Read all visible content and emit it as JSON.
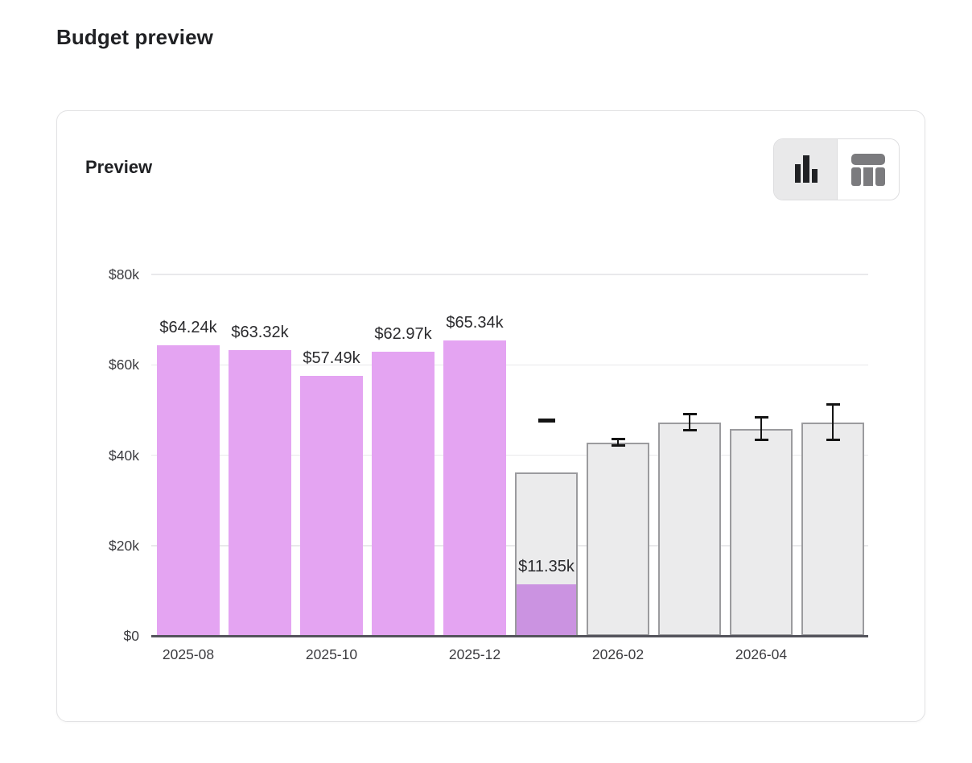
{
  "page": {
    "title": "Budget preview"
  },
  "card": {
    "heading": "Preview",
    "view_toggle": {
      "options": [
        {
          "name": "chart-view",
          "icon": "bar-chart-icon",
          "selected": true
        },
        {
          "name": "table-view",
          "icon": "table-icon",
          "selected": false
        }
      ]
    }
  },
  "chart_data": {
    "type": "bar",
    "title": "Budget preview",
    "xlabel": "",
    "ylabel": "",
    "ylim": [
      0,
      80000
    ],
    "grid": "horizontal",
    "legend": "none",
    "y_ticks": [
      {
        "value": 0,
        "label": "$0"
      },
      {
        "value": 20000,
        "label": "$20k"
      },
      {
        "value": 40000,
        "label": "$40k"
      },
      {
        "value": 60000,
        "label": "$60k"
      },
      {
        "value": 80000,
        "label": "$80k"
      }
    ],
    "x_tick_labels": [
      "2025-08",
      "2025-10",
      "2025-12",
      "2026-02",
      "2026-04"
    ],
    "bars": [
      {
        "month": "2025-08",
        "type": "actual",
        "value": 64240,
        "label": "$64.24k"
      },
      {
        "month": "2025-09",
        "type": "actual",
        "value": 63320,
        "label": "$63.32k"
      },
      {
        "month": "2025-10",
        "type": "actual",
        "value": 57490,
        "label": "$57.49k"
      },
      {
        "month": "2025-11",
        "type": "actual",
        "value": 62970,
        "label": "$62.97k"
      },
      {
        "month": "2025-12",
        "type": "actual",
        "value": 65340,
        "label": "$65.34k"
      },
      {
        "month": "2026-01",
        "type": "partial",
        "actual_to_date": 11350,
        "label": "$11.35k",
        "projected_total": 36200,
        "marker_value": 47700
      },
      {
        "month": "2026-02",
        "type": "forecast",
        "value": 42800,
        "error": 750
      },
      {
        "month": "2026-03",
        "type": "forecast",
        "value": 47300,
        "error": 1750
      },
      {
        "month": "2026-04",
        "type": "forecast",
        "value": 45800,
        "error": 2500
      },
      {
        "month": "2026-05",
        "type": "forecast",
        "value": 47300,
        "error": 3850
      }
    ],
    "colors": {
      "actual_fill": "#e4a4f2",
      "partial_fill": "#cb93e1",
      "forecast_fill": "#ebebec",
      "forecast_border": "#9b9b9e",
      "error_bar": "#141414",
      "axis": "#54545c",
      "grid": "#e9e9eb"
    }
  }
}
